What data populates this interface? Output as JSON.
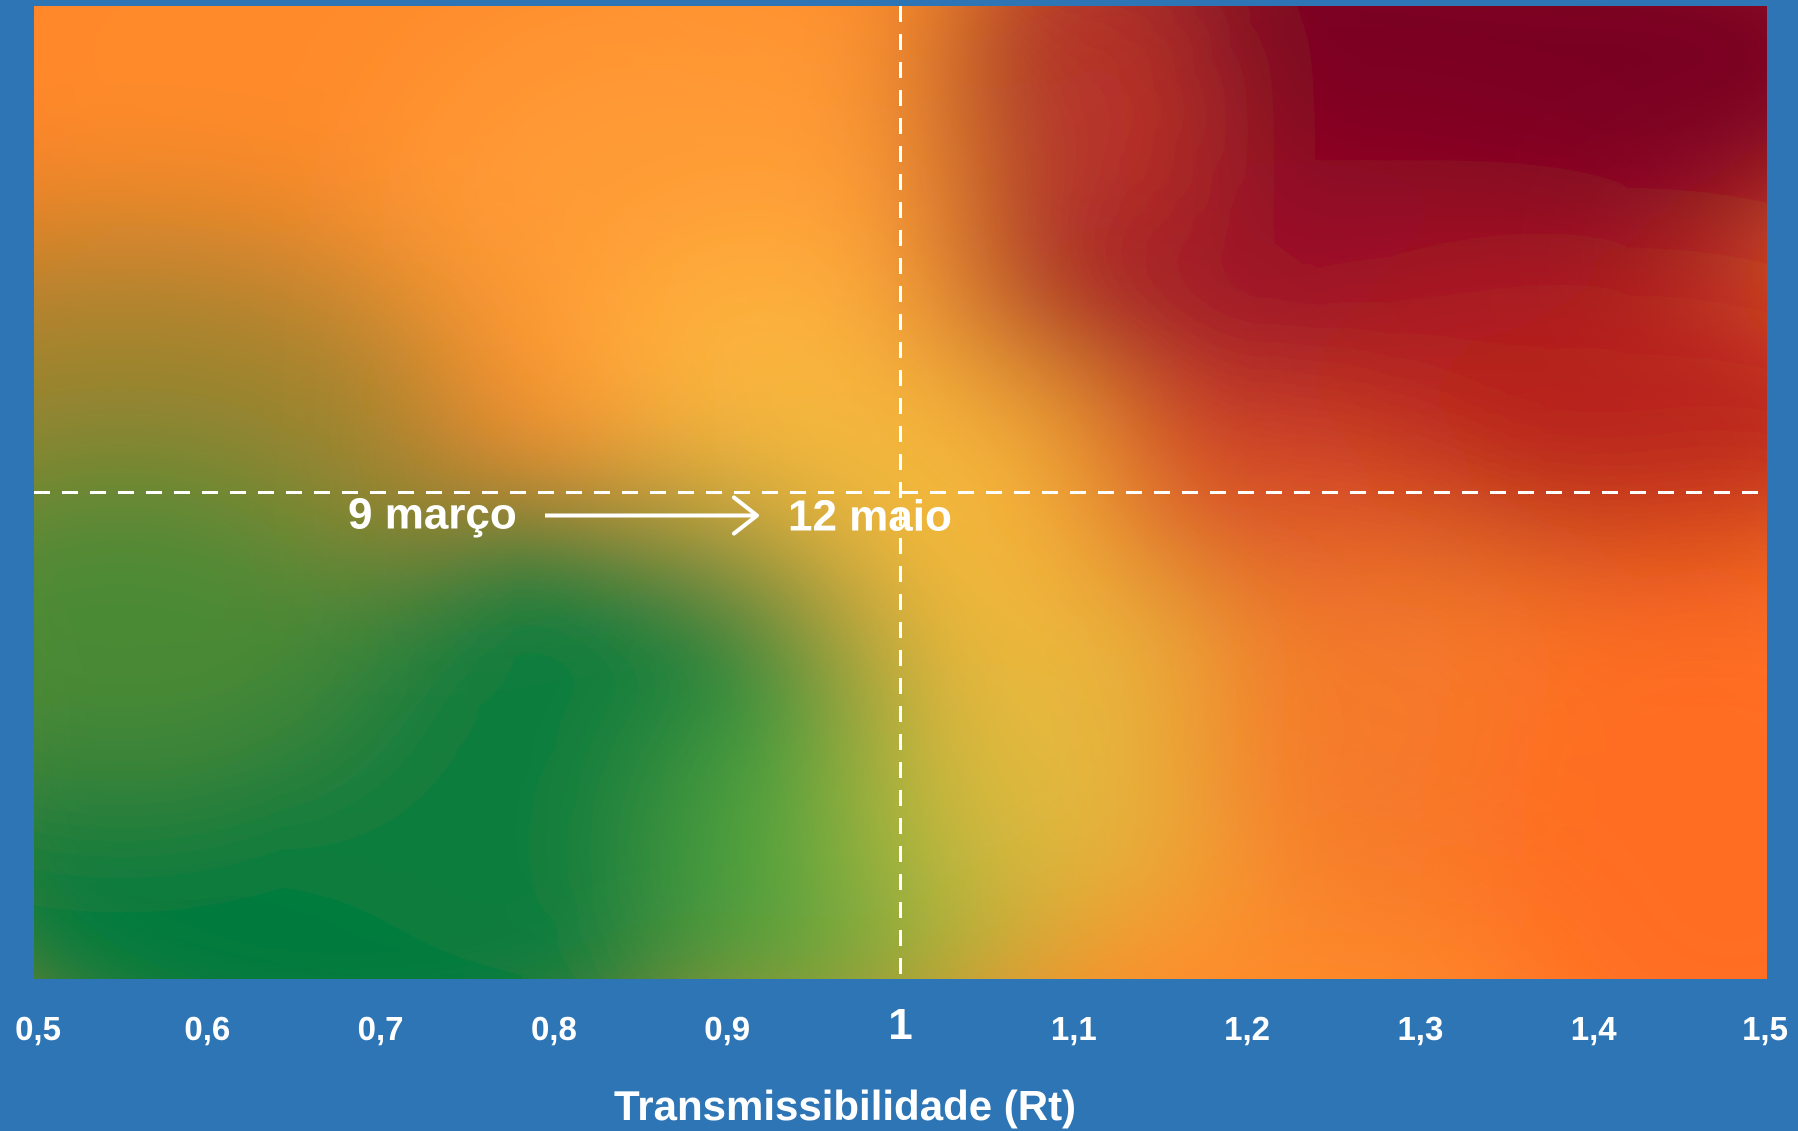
{
  "chart_data": {
    "type": "heatmap",
    "xlabel": "Transmissibilidade (Rt)",
    "xlim": [
      0.5,
      1.5
    ],
    "x_ticks": [
      {
        "value": 0.5,
        "label": "0,5"
      },
      {
        "value": 0.6,
        "label": "0,6"
      },
      {
        "value": 0.7,
        "label": "0,7"
      },
      {
        "value": 0.8,
        "label": "0,8"
      },
      {
        "value": 0.9,
        "label": "0,9"
      },
      {
        "value": 1.0,
        "label": "1",
        "major": true
      },
      {
        "value": 1.1,
        "label": "1,1"
      },
      {
        "value": 1.2,
        "label": "1,2"
      },
      {
        "value": 1.3,
        "label": "1,3"
      },
      {
        "value": 1.4,
        "label": "1,4"
      },
      {
        "value": 1.5,
        "label": "1,5"
      }
    ],
    "reference_line_x": 1.0,
    "reference_line_y_fraction": 0.5,
    "annotations": {
      "start_label": "9 março",
      "end_label": "12 maio"
    },
    "colors": {
      "background": "#2e75b6",
      "green": "#007a3d",
      "yellow": "#f5b83a",
      "orange": "#ff8a2a",
      "red": "#c9281f",
      "dark_red": "#7a0020",
      "reference_line": "#ffffff"
    }
  }
}
